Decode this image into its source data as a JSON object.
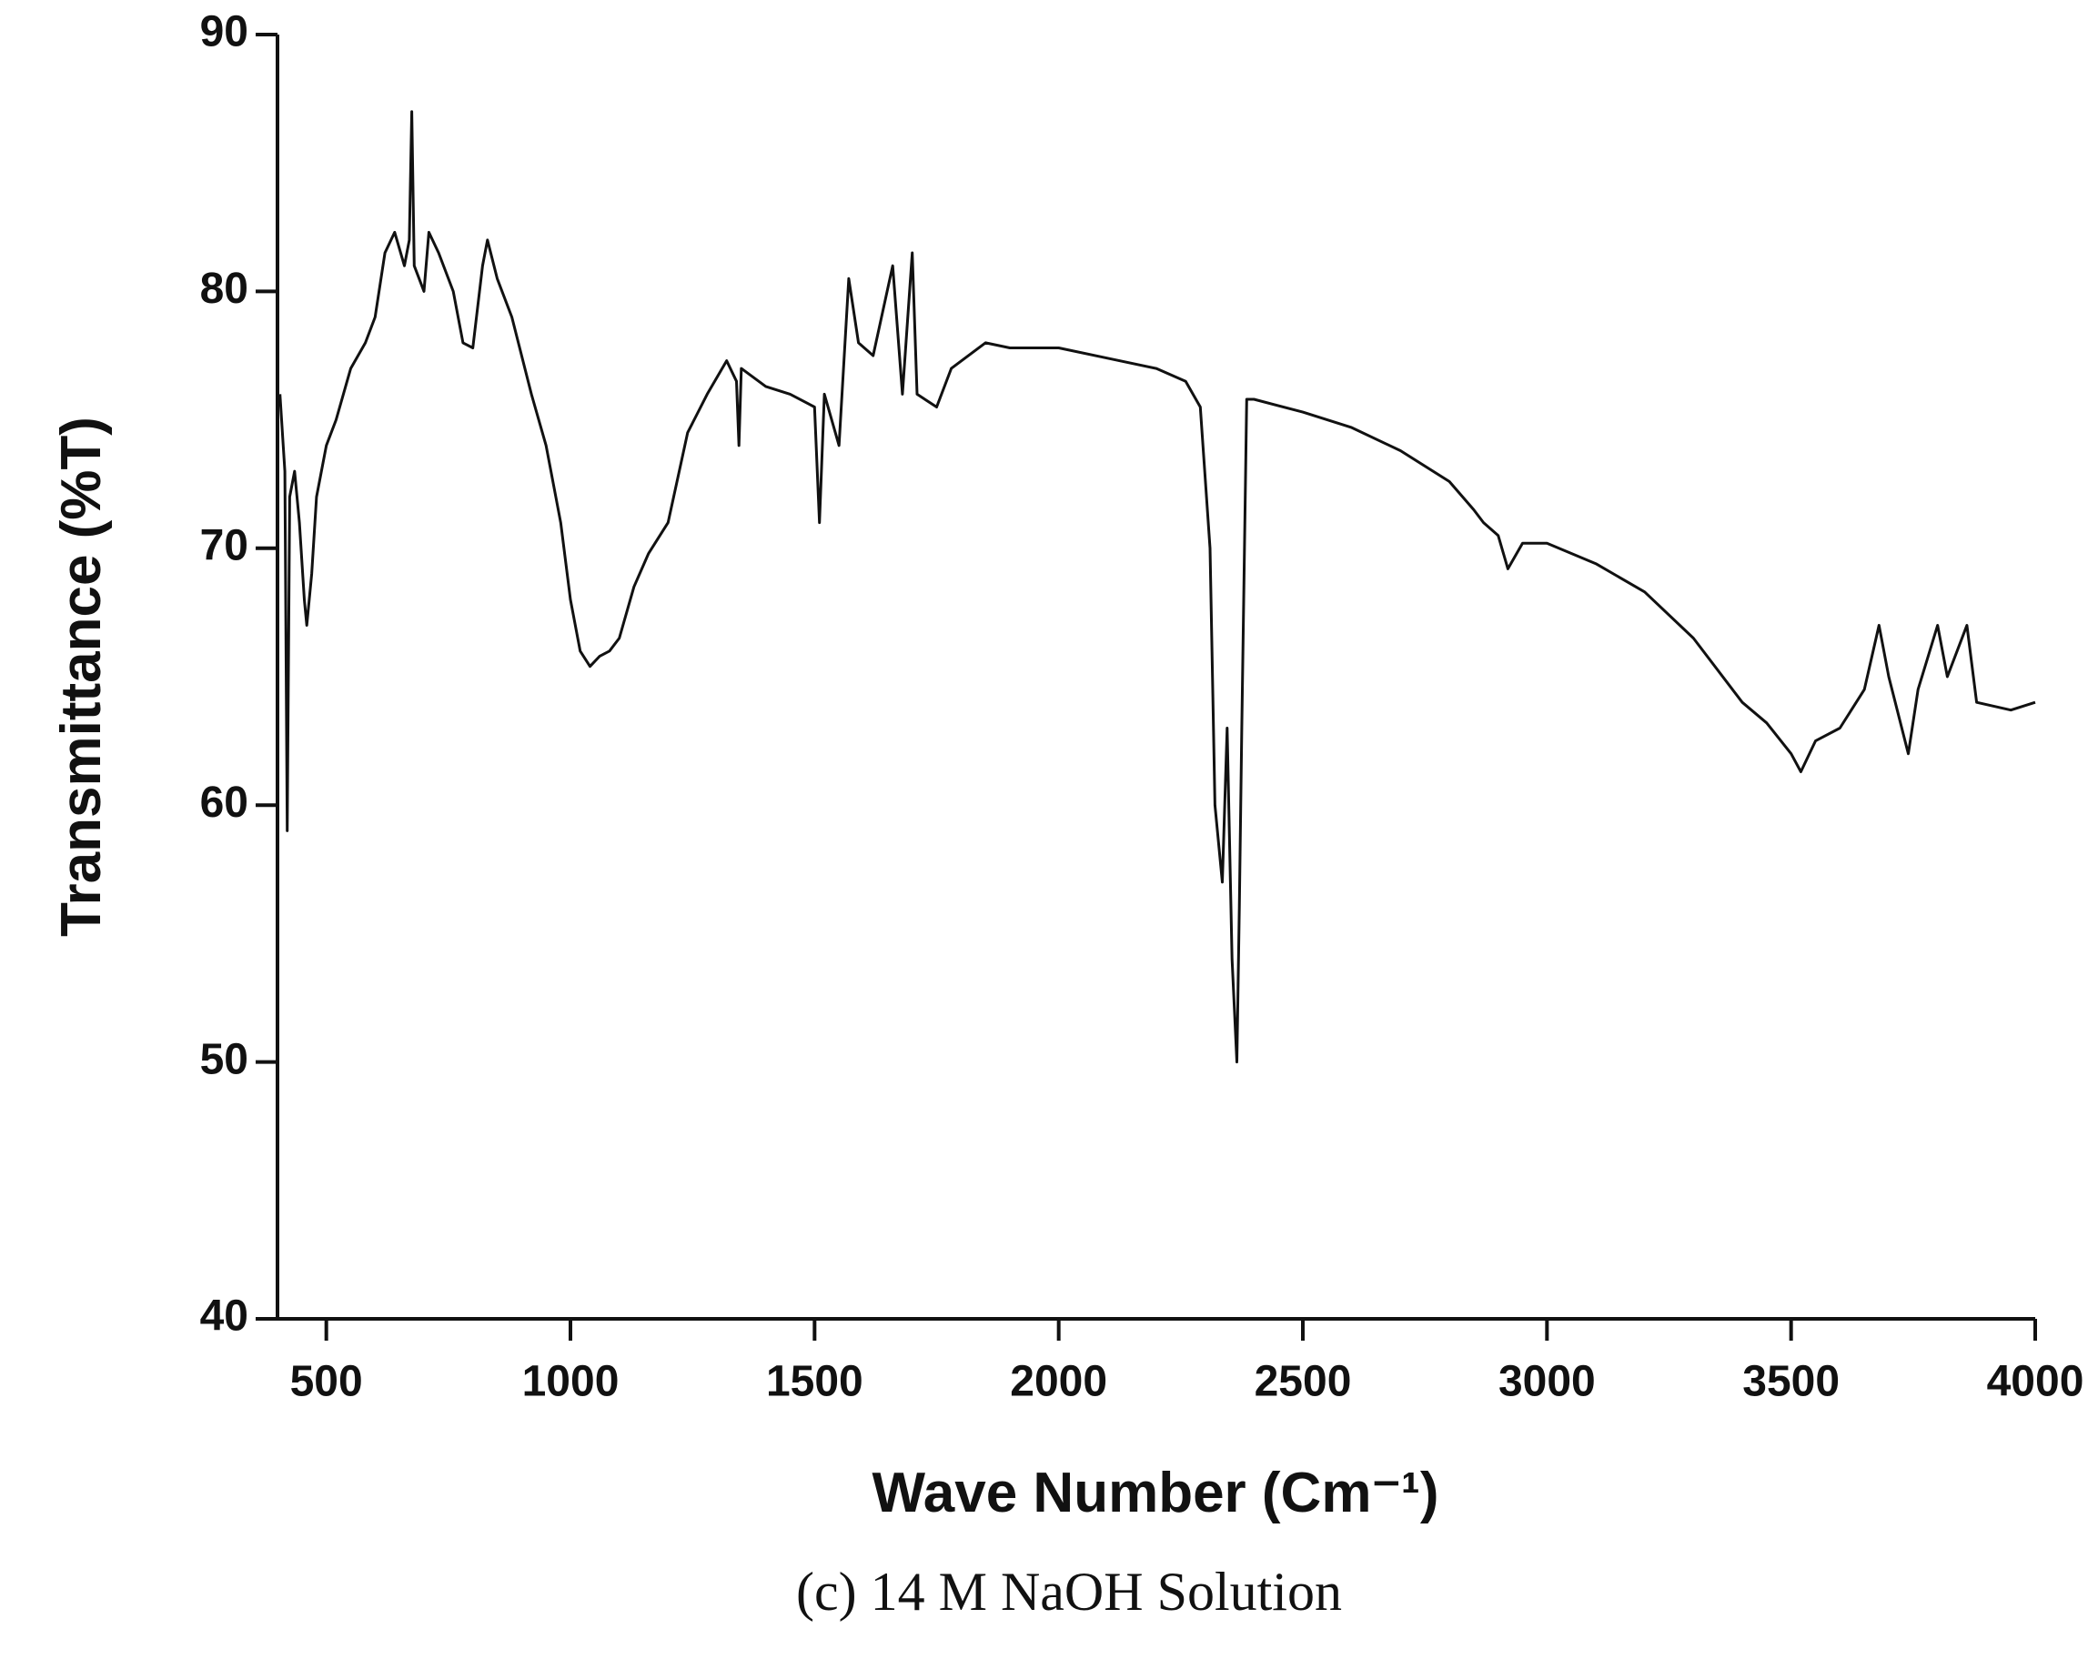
{
  "chart_data": {
    "type": "line",
    "xlabel": "Wave Number (Cm⁻¹)",
    "ylabel": "Transmittance (%T)",
    "caption": "(c) 14 M NaOH Solution",
    "xlim": [
      400,
      4000
    ],
    "ylim": [
      40,
      90
    ],
    "xticks": [
      500,
      1000,
      1500,
      2000,
      2500,
      3000,
      3500,
      4000
    ],
    "yticks": [
      40,
      50,
      60,
      70,
      80,
      90
    ],
    "series": [
      {
        "color": "#111111",
        "x": [
          405,
          415,
          420,
          425,
          435,
          445,
          455,
          460,
          470,
          480,
          500,
          520,
          550,
          580,
          600,
          620,
          640,
          660,
          670,
          675,
          680,
          700,
          710,
          730,
          760,
          780,
          800,
          820,
          830,
          850,
          880,
          920,
          950,
          980,
          1000,
          1020,
          1040,
          1060,
          1080,
          1100,
          1130,
          1160,
          1200,
          1240,
          1280,
          1320,
          1340,
          1345,
          1350,
          1400,
          1450,
          1500,
          1510,
          1520,
          1550,
          1570,
          1590,
          1620,
          1660,
          1680,
          1700,
          1710,
          1750,
          1780,
          1850,
          1900,
          2000,
          2100,
          2200,
          2260,
          2290,
          2310,
          2320,
          2335,
          2345,
          2355,
          2365,
          2370,
          2375,
          2385,
          2400,
          2500,
          2600,
          2700,
          2800,
          2850,
          2870,
          2900,
          2920,
          2950,
          3000,
          3100,
          3200,
          3300,
          3400,
          3450,
          3500,
          3520,
          3550,
          3600,
          3650,
          3680,
          3700,
          3740,
          3760,
          3800,
          3820,
          3860,
          3880,
          3950,
          4000
        ],
        "values": [
          76,
          73,
          59,
          72,
          73,
          71,
          68,
          67,
          69,
          72,
          74,
          75,
          77,
          78,
          79,
          81.5,
          82.3,
          81,
          82,
          87,
          81,
          80,
          82.3,
          81.5,
          80,
          78,
          77.8,
          81,
          82,
          80.5,
          79,
          76,
          74,
          71,
          68,
          66,
          65.4,
          65.8,
          66,
          66.5,
          68.5,
          69.8,
          71,
          74.5,
          76,
          77.3,
          76.5,
          74,
          77,
          76.3,
          76,
          75.5,
          71,
          76,
          74,
          80.5,
          78,
          77.5,
          81,
          76,
          81.5,
          76,
          75.5,
          77,
          78,
          77.8,
          77.8,
          77.4,
          77,
          76.5,
          75.5,
          70,
          60,
          57,
          63,
          54,
          50,
          56,
          63,
          75.8,
          75.8,
          75.3,
          74.7,
          73.8,
          72.6,
          71.5,
          71,
          70.5,
          69.2,
          70.2,
          70.2,
          69.4,
          68.3,
          66.5,
          64,
          63.2,
          62,
          61.3,
          62.5,
          63,
          64.5,
          67,
          65,
          62,
          64.5,
          67,
          65,
          67,
          64,
          63.7,
          64
        ]
      }
    ]
  }
}
